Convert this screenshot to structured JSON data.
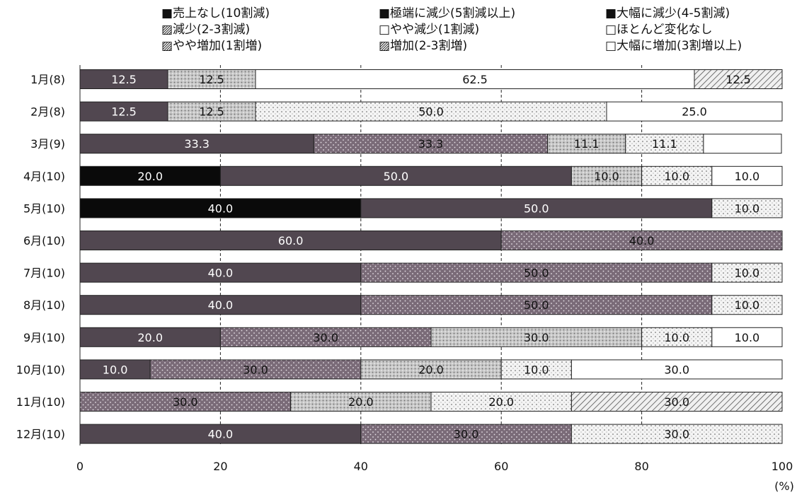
{
  "chart_data": {
    "type": "bar",
    "orientation": "horizontal",
    "stacked": true,
    "xlim": [
      0,
      100
    ],
    "xticks": [
      "0",
      "20",
      "40",
      "60",
      "80",
      "100"
    ],
    "unit_label": "(%)",
    "grid": "dashed-vertical",
    "legend_position": "top",
    "categories": [
      "1月(8)",
      "2月(8)",
      "3月(9)",
      "4月(10)",
      "5月(10)",
      "6月(10)",
      "7月(10)",
      "8月(10)",
      "9月(10)",
      "10月(10)",
      "11月(10)",
      "12月(10)"
    ],
    "series": [
      {
        "name": "売上なし(10割減)",
        "marker": "■",
        "color": "#0a0a0a",
        "pattern": "solid",
        "label_color": "#ffffff",
        "values": [
          0,
          0,
          0,
          20.0,
          40.0,
          0,
          0,
          0,
          0,
          0,
          0,
          0
        ]
      },
      {
        "name": "極端に減少(5割減以上)",
        "marker": "■",
        "color": "#514750",
        "pattern": "solid",
        "label_color": "#ffffff",
        "values": [
          12.5,
          12.5,
          33.3,
          50.0,
          50.0,
          60.0,
          40.0,
          40.0,
          20.0,
          10.0,
          0,
          40.0
        ]
      },
      {
        "name": "大幅に減少(4-5割減)",
        "marker": "■",
        "color": "#7a6b78",
        "pattern": "dots-dark",
        "label_color": "#111111",
        "values": [
          0,
          0,
          33.3,
          0,
          0,
          40.0,
          50.0,
          50.0,
          30.0,
          30.0,
          30.0,
          30.0
        ]
      },
      {
        "name": "減少(2-3割減)",
        "marker": "▨",
        "color": "#bdbdbd",
        "pattern": "dots-mid",
        "label_color": "#111111",
        "values": [
          12.5,
          12.5,
          11.1,
          10.0,
          0,
          0,
          0,
          0,
          30.0,
          20.0,
          20.0,
          0
        ]
      },
      {
        "name": "やや減少(1割減)",
        "marker": "□",
        "color": "#ebebeb",
        "pattern": "dots-light",
        "label_color": "#111111",
        "values": [
          0,
          50.0,
          11.1,
          10.0,
          10.0,
          0,
          10.0,
          10.0,
          10.0,
          10.0,
          20.0,
          30.0
        ]
      },
      {
        "name": "ほとんど変化なし",
        "marker": "□",
        "color": "#ffffff",
        "pattern": "solid",
        "label_color": "#111111",
        "values": [
          62.5,
          25.0,
          11.1,
          10.0,
          0,
          0,
          0,
          0,
          10.0,
          30.0,
          0,
          0
        ]
      },
      {
        "name": "やや増加(1割増)",
        "marker": "▨",
        "color": "#dddddd",
        "pattern": "hatch",
        "label_color": "#111111",
        "values": [
          12.5,
          0,
          0,
          0,
          0,
          0,
          0,
          0,
          0,
          0,
          30.0,
          0
        ]
      },
      {
        "name": "増加(2-3割増)",
        "marker": "▨",
        "color": "#dddddd",
        "pattern": "hatch",
        "label_color": "#111111",
        "values": [
          0,
          0,
          0,
          0,
          0,
          0,
          0,
          0,
          0,
          0,
          0,
          0
        ]
      },
      {
        "name": "大幅に増加(3割増以上)",
        "marker": "□",
        "color": "#ffffff",
        "pattern": "solid",
        "label_color": "#111111",
        "values": [
          0,
          0,
          0,
          0,
          0,
          0,
          0,
          0,
          0,
          0,
          0,
          0
        ]
      }
    ],
    "label_overrides": [
      {
        "row": 2,
        "series": 5,
        "label": ""
      }
    ]
  }
}
